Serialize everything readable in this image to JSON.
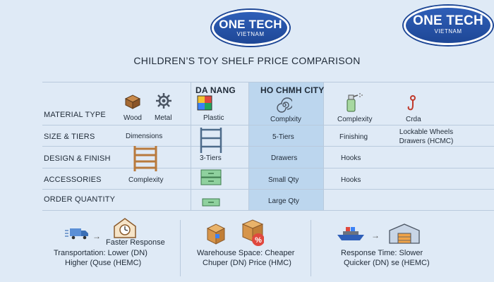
{
  "logos": [
    {
      "name": "ONE TECH",
      "sub": "VIETNAM"
    },
    {
      "name": "ONE TECH",
      "sub": "VIETNAM"
    }
  ],
  "title": "CHILDREN’S TOY SHELF PRICE COMPARISON",
  "columns": {
    "da_nang": "DA NANG",
    "hcmc": "HO CHMH CITY"
  },
  "rows": {
    "material": "MATERIAL TYPE",
    "size": "SIZE & TIERS",
    "design": "DESIGN & FINISH",
    "accessories": "ACCESSORIES",
    "order": "ORDER QUANTITY"
  },
  "cells": {
    "wood": "Wood",
    "metal": "Metal",
    "plastic": "Plastic",
    "complxity": "Complxity",
    "complexity_right": "Complexity",
    "crda": "Crda",
    "dimensions": "Dimensions",
    "five_tiers": "5-Tiers",
    "finishing": "Finishing",
    "lockable_1": "Lockable Wheels",
    "lockable_2": "Drawers (HCMC)",
    "three_tiers": "3-Tiers",
    "drawers": "Drawers",
    "hooks_1": "Hooks",
    "complexity_acc": "Complexity",
    "small_qty": "Small Qty",
    "hooks_2": "Hooks",
    "large_qty": "Large Qty"
  },
  "bottom": {
    "faster_response": "Faster Response",
    "transport_1": "Transportation: Lower (DN)",
    "transport_2": "Higher (Quse (HEMC)",
    "warehouse_1": "Warehouse Space: Cheaper",
    "warehouse_2": "Chuper (DN) Price (HMC)",
    "response_1": "Response Time: Slower",
    "response_2": "Quicker (DN) se (HEMC)"
  },
  "colors": {
    "background": "#dfeaf6",
    "highlight_column": "#bcd6ee",
    "logo_blue": "#1e4796",
    "grid": "#b9cadd"
  },
  "icons": [
    "wood-block-icon",
    "gear-icon",
    "plastic-cube-icon",
    "spiral-icon",
    "spray-bottle-icon",
    "hook-icon",
    "metal-shelf-icon",
    "wooden-shelf-icon",
    "drawer-icon",
    "truck-icon",
    "clock-house-icon",
    "boxes-icon",
    "ship-icon",
    "warehouse-icon"
  ]
}
